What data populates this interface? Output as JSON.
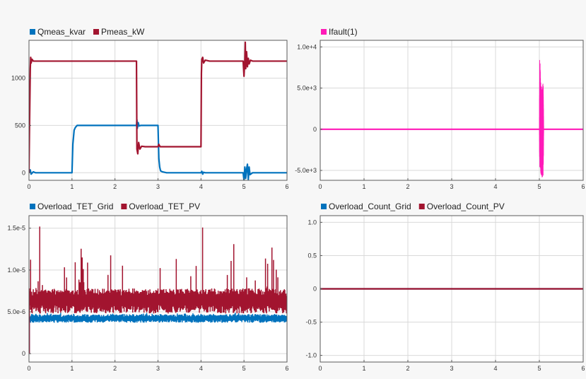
{
  "colors": {
    "blue": "#0072bd",
    "red": "#a2142f",
    "magenta": "#ff1ab8",
    "grid": "#d9d9d9",
    "axis": "#5a5a5a",
    "plot_bg": "#ffffff"
  },
  "chart_data": [
    {
      "type": "line",
      "title": "",
      "legend_position": "top-left",
      "xlabel": "",
      "ylabel": "",
      "xlim": [
        0,
        6
      ],
      "ylim": [
        -80,
        1400
      ],
      "xticks": [
        0,
        1,
        2,
        3,
        4,
        5,
        6
      ],
      "xtick_labels": [
        "0",
        "1",
        "2",
        "3",
        "4",
        "5",
        "6"
      ],
      "yticks": [
        0,
        500,
        1000
      ],
      "ytick_labels": [
        "0",
        "500",
        "1000"
      ],
      "grid": true,
      "series": [
        {
          "name": "Qmeas_kvar",
          "color": "#0072bd",
          "x": [
            0,
            0.03,
            0.05,
            0.1,
            0.15,
            0.6,
            1.0,
            1.02,
            1.05,
            1.08,
            1.12,
            1.2,
            1.5,
            2.0,
            2.5,
            2.51,
            2.52,
            2.54,
            2.56,
            2.6,
            3.0,
            3.02,
            3.04,
            3.06,
            3.1,
            3.2,
            4.0,
            4.02,
            4.04,
            4.06,
            4.1,
            4.5,
            4.98,
            5.0,
            5.02,
            5.04,
            5.06,
            5.08,
            5.1,
            5.12,
            5.14,
            5.2,
            5.5,
            6.0
          ],
          "y": [
            0,
            30,
            -15,
            10,
            0,
            0,
            0,
            300,
            450,
            480,
            500,
            500,
            500,
            500,
            500,
            560,
            470,
            530,
            495,
            500,
            500,
            150,
            60,
            20,
            10,
            0,
            0,
            15,
            -15,
            5,
            0,
            0,
            0,
            -80,
            60,
            -60,
            40,
            90,
            -70,
            60,
            -20,
            0,
            0,
            0
          ]
        },
        {
          "name": "Pmeas_kW",
          "color": "#a2142f",
          "x": [
            0,
            0.01,
            0.02,
            0.03,
            0.04,
            0.05,
            0.07,
            0.1,
            0.15,
            0.3,
            1.0,
            1.5,
            2.0,
            2.5,
            2.51,
            2.53,
            2.55,
            2.58,
            2.62,
            2.7,
            3.0,
            3.02,
            3.05,
            3.1,
            4.0,
            4.01,
            4.02,
            4.04,
            4.06,
            4.1,
            4.2,
            4.5,
            4.98,
            5.0,
            5.02,
            5.03,
            5.04,
            5.06,
            5.08,
            5.1,
            5.12,
            5.15,
            5.2,
            5.3,
            6.0
          ],
          "y": [
            0,
            400,
            750,
            1100,
            1220,
            1160,
            1200,
            1180,
            1180,
            1180,
            1180,
            1180,
            1180,
            1180,
            250,
            200,
            320,
            250,
            280,
            275,
            275,
            300,
            275,
            275,
            275,
            1050,
            1200,
            1220,
            1160,
            1190,
            1180,
            1180,
            1180,
            1020,
            1200,
            1380,
            1100,
            1280,
            1120,
            1210,
            1150,
            1190,
            1180,
            1180,
            1180
          ]
        }
      ]
    },
    {
      "type": "line",
      "title": "",
      "legend_position": "top-left",
      "xlabel": "",
      "ylabel": "",
      "xlim": [
        0,
        6
      ],
      "ylim": [
        -6200,
        10800
      ],
      "xticks": [
        0,
        1,
        2,
        3,
        4,
        5,
        6
      ],
      "xtick_labels": [
        "0",
        "1",
        "2",
        "3",
        "4",
        "5",
        "6"
      ],
      "yticks": [
        -5000,
        0,
        5000,
        10000
      ],
      "ytick_labels": [
        "-5.0e+3",
        "0",
        "5.0e+3",
        "1.0e+4"
      ],
      "grid": true,
      "series": [
        {
          "name": "Ifault(1)",
          "color": "#ff1ab8",
          "x": [
            0,
            4.98,
            5.0,
            5.1,
            6.0
          ],
          "y": [
            0,
            0,
            0,
            0,
            0
          ],
          "envelope": {
            "x": [
              5.0,
              5.005,
              5.01,
              5.02,
              5.03,
              5.04,
              5.05,
              5.06,
              5.07,
              5.08,
              5.09,
              5.1
            ],
            "upper": [
              0,
              9000,
              10000,
              7500,
              6000,
              5800,
              5200,
              5000,
              4800,
              6000,
              5500,
              0
            ],
            "lower": [
              0,
              -4500,
              -5000,
              -5200,
              -5500,
              -5600,
              -5800,
              -6000,
              -5900,
              -6100,
              -6000,
              0
            ]
          }
        }
      ]
    },
    {
      "type": "line",
      "title": "",
      "legend_position": "top-left",
      "xlabel": "",
      "ylabel": "",
      "xlim": [
        0,
        6
      ],
      "ylim": [
        -1e-06,
        1.65e-05
      ],
      "xticks": [
        0,
        1,
        2,
        3,
        4,
        5,
        6
      ],
      "xtick_labels": [
        "0",
        "1",
        "2",
        "3",
        "4",
        "5",
        "6"
      ],
      "yticks": [
        0,
        5e-06,
        1e-05,
        1.5e-05
      ],
      "ytick_labels": [
        "0",
        "5.0e-6",
        "1.0e-5",
        "1.5e-5"
      ],
      "grid": true,
      "series": [
        {
          "name": "Overload_TET_Grid",
          "color": "#0072bd",
          "x": [
            0,
            6
          ],
          "y": [
            4.2e-06,
            4.2e-06
          ],
          "band": [
            3.7e-06,
            4.7e-06
          ],
          "spike_max": 4.9e-06
        },
        {
          "name": "Overload_TET_PV",
          "color": "#a2142f",
          "x": [
            0,
            6
          ],
          "y": [
            6.5e-06,
            6.5e-06
          ],
          "band": [
            4.8e-06,
            7.8e-06
          ],
          "spike_max": 1.52e-05
        }
      ]
    },
    {
      "type": "line",
      "title": "",
      "legend_position": "top-left",
      "xlabel": "",
      "ylabel": "",
      "xlim": [
        0,
        6
      ],
      "ylim": [
        -1.1,
        1.1
      ],
      "xticks": [
        0,
        1,
        2,
        3,
        4,
        5,
        6
      ],
      "xtick_labels": [
        "0",
        "1",
        "2",
        "3",
        "4",
        "5",
        "6"
      ],
      "yticks": [
        -1.0,
        -0.5,
        0,
        0.5,
        1.0
      ],
      "ytick_labels": [
        "-1.0",
        "-0.5",
        "0",
        "0.5",
        "1.0"
      ],
      "grid": true,
      "series": [
        {
          "name": "Overload_Count_Grid",
          "color": "#0072bd",
          "x": [
            0,
            6
          ],
          "y": [
            0,
            0
          ]
        },
        {
          "name": "Overload_Count_PV",
          "color": "#a2142f",
          "x": [
            0,
            6
          ],
          "y": [
            0,
            0
          ]
        }
      ]
    }
  ]
}
